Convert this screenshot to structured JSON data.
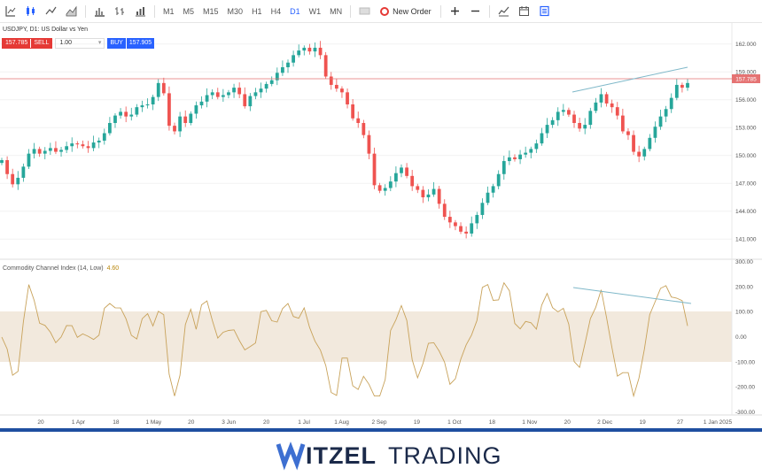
{
  "toolbar": {
    "timeframes": [
      "M1",
      "M5",
      "M15",
      "M30",
      "H1",
      "H4",
      "D1",
      "W1",
      "MN"
    ],
    "active_timeframe": "D1",
    "new_order_label": "New Order"
  },
  "symbol": {
    "title": "USDJPY, D1: US Dollar vs Yen"
  },
  "trade": {
    "sell_price": "157.785",
    "sell_label": "SELL",
    "volume": "1.00",
    "buy_label": "BUY",
    "buy_price": "157.905"
  },
  "indicator": {
    "name": "Commodity Channel Index (14, Low)",
    "value": "4.60"
  },
  "price_axis": {
    "labels": [
      "162.000",
      "159.000",
      "156.000",
      "153.000",
      "150.000",
      "147.000",
      "144.000",
      "141.000"
    ],
    "current_price": "157.785"
  },
  "cci_axis": {
    "labels": [
      "300.00",
      "200.00",
      "100.00",
      "0.00",
      "-100.00",
      "-200.00",
      "-300.00"
    ]
  },
  "time_axis": {
    "labels": [
      "20",
      "1 Apr",
      "18",
      "1 May",
      "20",
      "3 Jun",
      "20",
      "1 Jul",
      "1 Aug",
      "2 Sep",
      "19",
      "1 Oct",
      "18",
      "1 Nov",
      "20",
      "2 Dec",
      "19",
      "27",
      "1 Jan 2025"
    ]
  },
  "colors": {
    "bull": "#26a69a",
    "bear": "#ef5350",
    "current_line": "#e57373",
    "trendline": "#7fb8c9",
    "cci_line": "#c8a25a",
    "cci_band": "#efe4d4",
    "footer_bar": "#1f4fa0",
    "brand_dark": "#1b2a4a",
    "brand_accent": "#3d6fd1"
  },
  "chart_data": {
    "type": "candlestick",
    "series": [
      {
        "name": "USDJPY",
        "close_path": [
          149.5,
          148.0,
          146.9,
          147.6,
          148.8,
          150.2,
          150.7,
          150.2,
          150.5,
          150.8,
          150.4,
          150.6,
          151.0,
          151.3,
          151.2,
          151.0,
          150.8,
          151.4,
          151.6,
          152.4,
          153.5,
          154.3,
          154.7,
          154.2,
          154.4,
          155.2,
          155.4,
          155.5,
          156.3,
          157.8,
          156.7,
          153.2,
          152.6,
          154.2,
          153.5,
          154.5,
          155.4,
          155.8,
          156.5,
          156.8,
          156.3,
          156.5,
          156.8,
          157.3,
          156.6,
          155.3,
          156.4,
          156.8,
          157.2,
          157.7,
          158.1,
          158.9,
          159.5,
          160.0,
          160.8,
          161.3,
          161.6,
          161.2,
          161.6,
          160.8,
          158.5,
          157.6,
          157.2,
          156.8,
          155.5,
          154.0,
          153.5,
          152.2,
          150.2,
          146.8,
          146.2,
          146.5,
          147.2,
          148.1,
          148.7,
          147.8,
          146.7,
          146.3,
          145.5,
          145.8,
          146.4,
          144.8,
          143.4,
          142.8,
          142.4,
          141.8,
          141.6,
          142.7,
          143.6,
          144.9,
          146.0,
          146.7,
          148.0,
          149.4,
          149.8,
          149.6,
          150.1,
          150.3,
          150.7,
          151.3,
          152.4,
          153.3,
          153.8,
          154.7,
          154.9,
          154.4,
          153.5,
          152.9,
          153.3,
          154.8,
          155.7,
          156.6,
          155.6,
          155.2,
          154.3,
          152.6,
          152.2,
          150.4,
          149.9,
          150.7,
          151.9,
          153.1,
          154.2,
          155.0,
          156.2,
          157.6,
          157.3,
          157.8
        ]
      },
      {
        "name": "Commodity Channel Index (14, Low)",
        "approx": "oscillates between about -230 and +230, last 4.60"
      }
    ],
    "ylim": [
      139.5,
      163.5
    ],
    "cci_ylim": [
      -300,
      300
    ]
  }
}
